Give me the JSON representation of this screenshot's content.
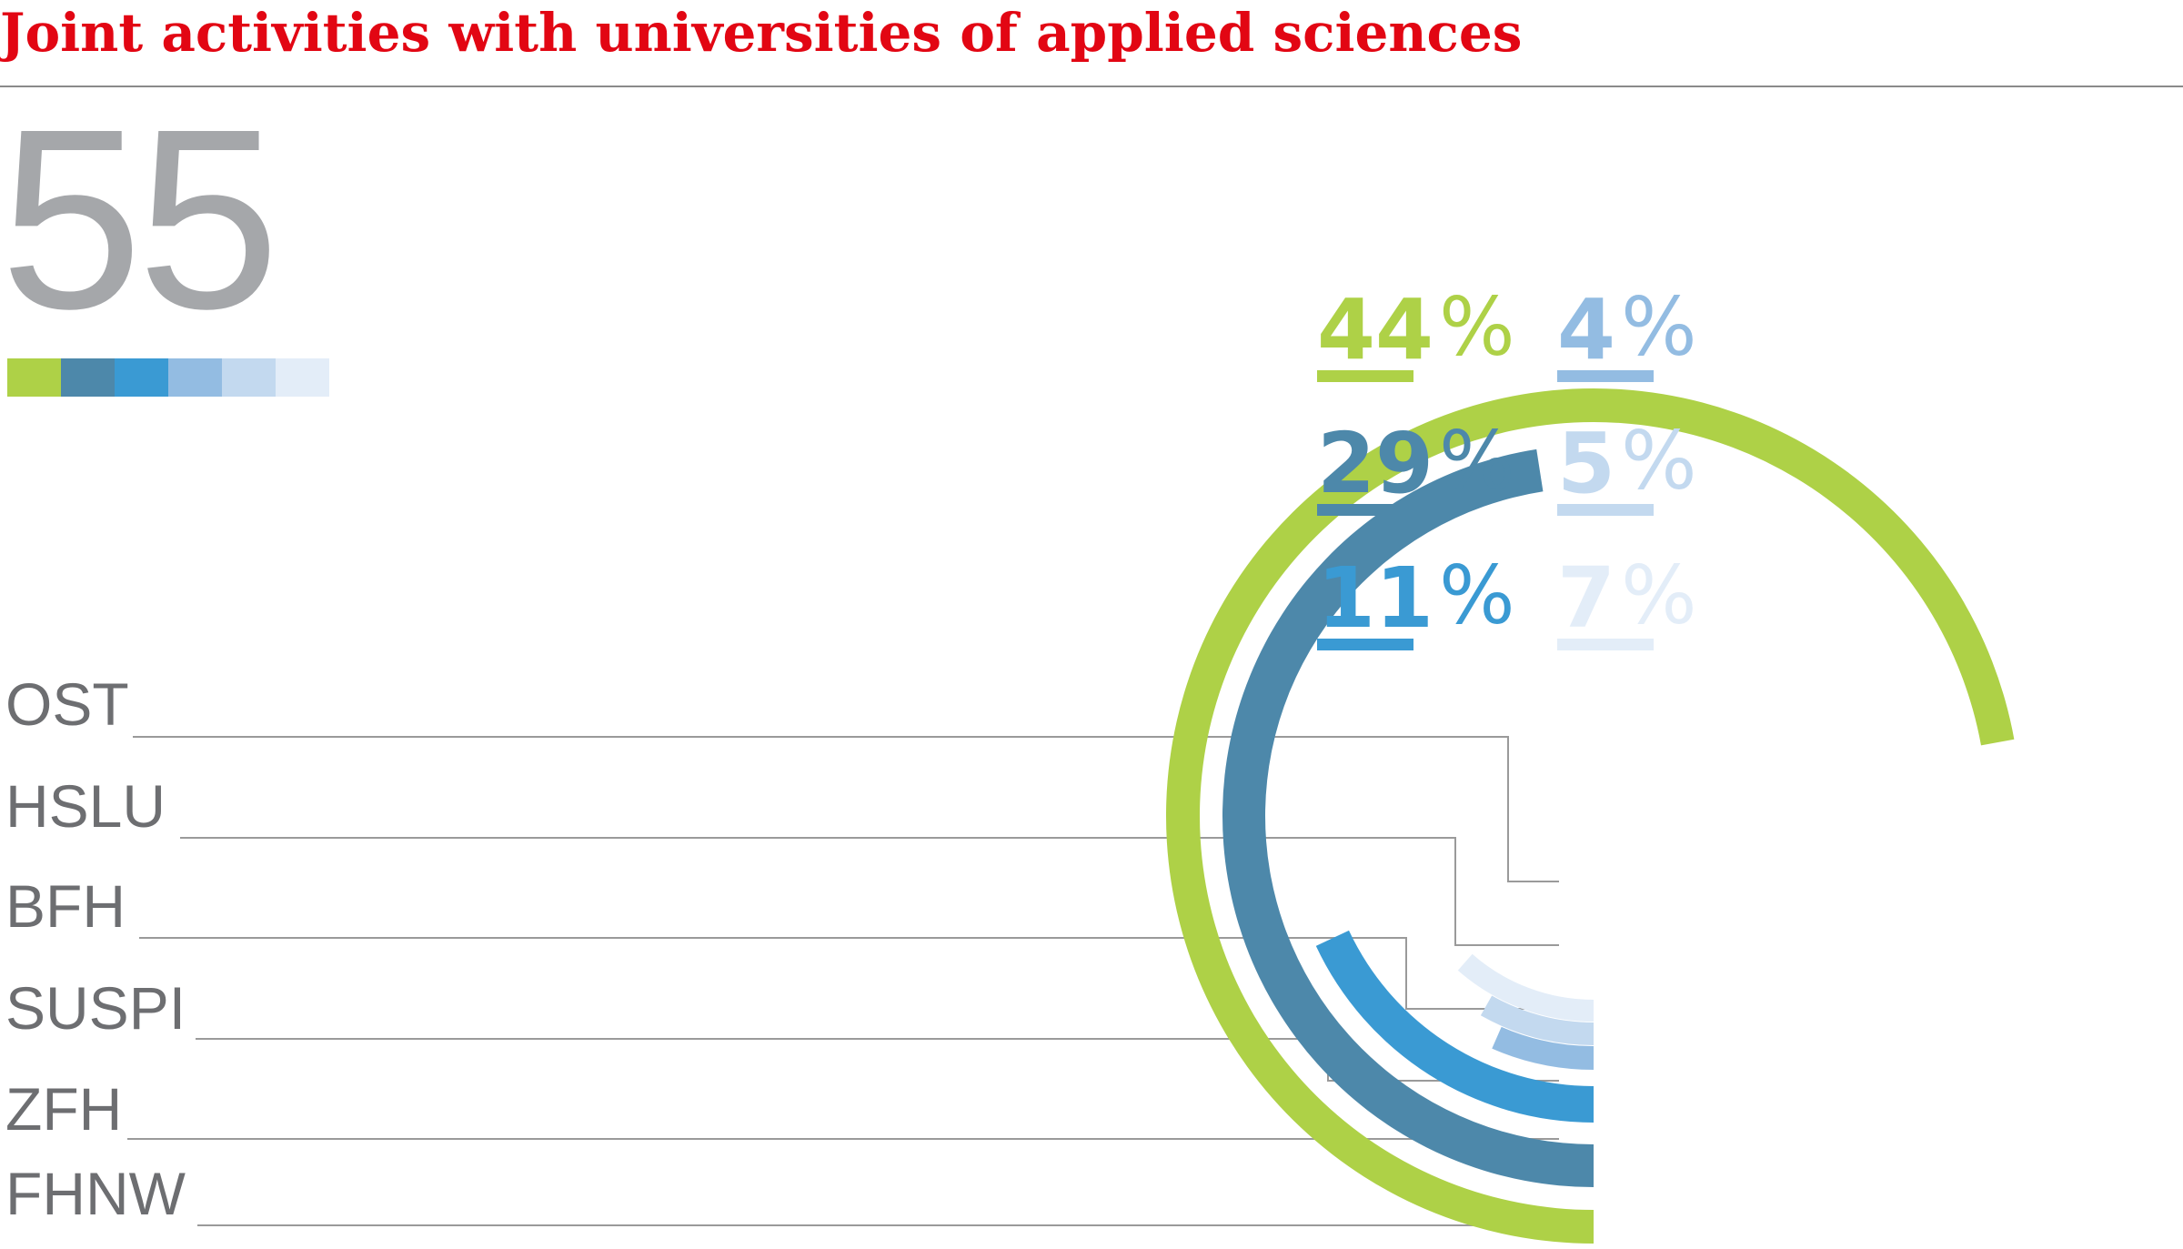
{
  "title": "Joint activities with universities of applied sciences",
  "total": "55",
  "colors": {
    "title": "#e20613",
    "total": "#a5a7aa",
    "rule": "#8a8a8a",
    "connector": "#9a9a9a",
    "label": "#6d6e71"
  },
  "chart_data": {
    "type": "radial_bar",
    "title": "Joint activities with universities of applied sciences",
    "total": 55,
    "unit": "%",
    "series": [
      {
        "name": "FHNW",
        "value": 44,
        "label": "44",
        "color": "#aed147"
      },
      {
        "name": "ZFH",
        "value": 29,
        "label": "29",
        "color": "#4d88aa"
      },
      {
        "name": "SUSPI",
        "value": 11,
        "label": "11",
        "color": "#3a9ad3"
      },
      {
        "name": "BFH",
        "value": 4,
        "label": "4",
        "color": "#93bce2"
      },
      {
        "name": "HSLU",
        "value": 5,
        "label": "5",
        "color": "#c3d9ef"
      },
      {
        "name": "OST",
        "value": 7,
        "label": "7",
        "color": "#e3edf8"
      }
    ],
    "label_order": [
      "OST",
      "HSLU",
      "BFH",
      "SUSPI",
      "ZFH",
      "FHNW"
    ],
    "legend_order": [
      "44",
      "29",
      "11",
      "4",
      "5",
      "7"
    ]
  }
}
